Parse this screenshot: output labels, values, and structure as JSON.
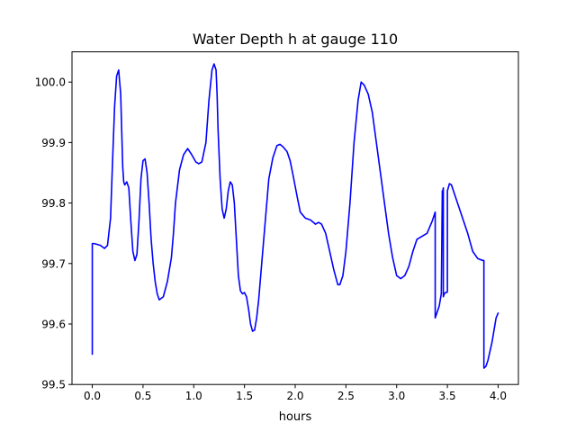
{
  "chart_data": {
    "type": "line",
    "title": "Water Depth h at gauge 110",
    "xlabel": "hours",
    "ylabel": "",
    "xlim": [
      -0.2,
      4.2
    ],
    "ylim": [
      99.5,
      100.05
    ],
    "xticks": [
      0.0,
      0.5,
      1.0,
      1.5,
      2.0,
      2.5,
      3.0,
      3.5,
      4.0
    ],
    "xtick_labels": [
      "0.0",
      "0.5",
      "1.0",
      "1.5",
      "2.0",
      "2.5",
      "3.0",
      "3.5",
      "4.0"
    ],
    "yticks": [
      99.5,
      99.6,
      99.7,
      99.8,
      99.9,
      100.0
    ],
    "ytick_labels": [
      "99.5",
      "99.6",
      "99.7",
      "99.8",
      "99.9",
      "100.0"
    ],
    "grid": false,
    "legend": false,
    "series": [
      {
        "color": "#0000ff",
        "x": [
          0.0,
          0.0,
          0.02,
          0.08,
          0.12,
          0.15,
          0.18,
          0.2,
          0.22,
          0.24,
          0.26,
          0.28,
          0.29,
          0.3,
          0.31,
          0.32,
          0.34,
          0.36,
          0.38,
          0.4,
          0.42,
          0.44,
          0.46,
          0.48,
          0.5,
          0.52,
          0.54,
          0.56,
          0.58,
          0.6,
          0.62,
          0.64,
          0.66,
          0.7,
          0.74,
          0.78,
          0.8,
          0.82,
          0.86,
          0.9,
          0.94,
          0.98,
          1.02,
          1.05,
          1.08,
          1.12,
          1.15,
          1.18,
          1.2,
          1.22,
          1.23,
          1.24,
          1.26,
          1.28,
          1.3,
          1.32,
          1.34,
          1.36,
          1.38,
          1.4,
          1.42,
          1.44,
          1.46,
          1.48,
          1.5,
          1.52,
          1.54,
          1.56,
          1.58,
          1.6,
          1.62,
          1.64,
          1.66,
          1.7,
          1.74,
          1.78,
          1.82,
          1.85,
          1.88,
          1.92,
          1.95,
          1.98,
          2.02,
          2.05,
          2.1,
          2.15,
          2.18,
          2.2,
          2.23,
          2.26,
          2.3,
          2.34,
          2.38,
          2.42,
          2.44,
          2.47,
          2.5,
          2.54,
          2.58,
          2.62,
          2.65,
          2.68,
          2.72,
          2.76,
          2.8,
          2.84,
          2.88,
          2.92,
          2.96,
          3.0,
          3.04,
          3.08,
          3.12,
          3.16,
          3.2,
          3.25,
          3.3,
          3.35,
          3.38,
          3.38,
          3.4,
          3.42,
          3.44,
          3.45,
          3.455,
          3.46,
          3.46,
          3.47,
          3.48,
          3.49,
          3.5,
          3.5,
          3.52,
          3.54,
          3.56,
          3.6,
          3.65,
          3.7,
          3.75,
          3.8,
          3.85,
          3.86,
          3.86,
          3.88,
          3.9,
          3.94,
          3.98,
          4.0
        ],
        "y": [
          99.55,
          99.733,
          99.733,
          99.73,
          99.725,
          99.73,
          99.775,
          99.87,
          99.96,
          100.01,
          100.02,
          99.98,
          99.92,
          99.86,
          99.835,
          99.83,
          99.835,
          99.825,
          99.77,
          99.72,
          99.705,
          99.715,
          99.77,
          99.84,
          99.87,
          99.873,
          99.85,
          99.8,
          99.74,
          99.7,
          99.67,
          99.65,
          99.64,
          99.645,
          99.67,
          99.71,
          99.75,
          99.8,
          99.855,
          99.88,
          99.89,
          99.88,
          99.868,
          99.865,
          99.868,
          99.9,
          99.97,
          100.02,
          100.03,
          100.02,
          99.98,
          99.92,
          99.84,
          99.79,
          99.775,
          99.79,
          99.82,
          99.835,
          99.83,
          99.8,
          99.74,
          99.68,
          99.655,
          99.65,
          99.652,
          99.645,
          99.625,
          99.6,
          99.588,
          99.59,
          99.61,
          99.64,
          99.68,
          99.76,
          99.84,
          99.875,
          99.895,
          99.897,
          99.893,
          99.885,
          99.87,
          99.845,
          99.81,
          99.785,
          99.775,
          99.772,
          99.768,
          99.765,
          99.768,
          99.765,
          99.75,
          99.72,
          99.69,
          99.665,
          99.665,
          99.68,
          99.72,
          99.8,
          99.9,
          99.97,
          100.0,
          99.995,
          99.98,
          99.95,
          99.9,
          99.85,
          99.8,
          99.75,
          99.71,
          99.68,
          99.675,
          99.68,
          99.695,
          99.72,
          99.74,
          99.745,
          99.75,
          99.77,
          99.785,
          99.61,
          99.62,
          99.63,
          99.65,
          99.82,
          99.82,
          99.825,
          99.645,
          99.65,
          99.652,
          99.652,
          99.653,
          99.82,
          99.832,
          99.83,
          99.82,
          99.8,
          99.775,
          99.75,
          99.72,
          99.708,
          99.705,
          99.705,
          99.527,
          99.53,
          99.54,
          99.57,
          99.61,
          99.618
        ]
      }
    ]
  }
}
